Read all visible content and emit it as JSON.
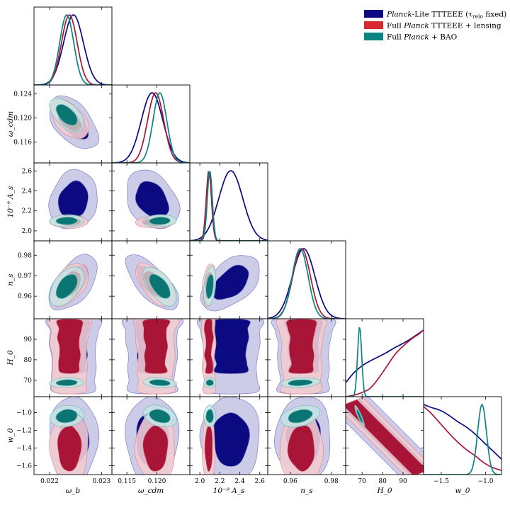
{
  "chart_data": {
    "type": "triangle",
    "parameters": [
      {
        "key": "omega_b",
        "label": "ω_b",
        "range": [
          0.0217,
          0.0232
        ],
        "ticks": [
          0.022,
          0.023
        ],
        "tick_labels": [
          "0.022",
          "0.023"
        ]
      },
      {
        "key": "omega_cdm",
        "label": "ω_cdm",
        "range": [
          0.1125,
          0.1255
        ],
        "ticks": [
          0.115,
          0.12
        ],
        "tick_labels": [
          "0.115",
          "0.120"
        ],
        "y_ticks": [
          0.116,
          0.12,
          0.124
        ],
        "y_tick_labels": [
          "0.116",
          "0.120",
          "0.124"
        ]
      },
      {
        "key": "As",
        "label": "10⁻⁹ A_s",
        "range": [
          1.9,
          2.68
        ],
        "ticks": [
          2.0,
          2.2,
          2.4,
          2.6
        ],
        "tick_labels": [
          "2.0",
          "2.2",
          "2.4",
          "2.6"
        ]
      },
      {
        "key": "ns",
        "label": "n_s",
        "range": [
          0.949,
          0.987
        ],
        "ticks": [
          0.96,
          0.98
        ],
        "tick_labels": [
          "0.96",
          "0.98"
        ],
        "y_ticks": [
          0.96,
          0.97,
          0.98
        ],
        "y_tick_labels": [
          "0.96",
          "0.97",
          "0.98"
        ]
      },
      {
        "key": "H0",
        "label": "H_0",
        "range": [
          62,
          100
        ],
        "ticks": [
          70,
          80,
          90
        ],
        "tick_labels": [
          "70",
          "80",
          "90"
        ]
      },
      {
        "key": "w0",
        "label": "w_0",
        "range": [
          -1.7,
          -0.82
        ],
        "ticks": [
          -1.5,
          -1.0
        ],
        "tick_labels": [
          "−1.5",
          "−1.0"
        ],
        "y_ticks": [
          -1.6,
          -1.4,
          -1.2,
          -1.0
        ],
        "y_tick_labels": [
          "−1.6",
          "−1.4",
          "−1.2",
          "−1.0"
        ]
      }
    ],
    "legend": [
      {
        "name": "Planck-Lite TTTEEE (τ_reio fixed)",
        "prefix": "Planck",
        "rest": "-Lite TTTEEE (τ",
        "sub": "reio",
        "suffix": " fixed)",
        "color": "#0b0a80",
        "light": "#c6c6e6"
      },
      {
        "name": "Full Planck TTTEEE + lensing",
        "prefix": "Full ",
        "italic": "Planck",
        "rest": " TTTEEE + lensing",
        "color": "#d62a2e",
        "light": "#f2ccd2"
      },
      {
        "name": "Full Planck + BAO",
        "prefix": "Full ",
        "italic": "Planck",
        "rest": " + BAO",
        "color": "#0a8582",
        "light": "#c4e6e3"
      }
    ],
    "series": [
      {
        "name": "Planck-Lite TTTEEE (τ_reio fixed)",
        "dark": "#0b0a80",
        "inner": "#0b0a80",
        "outer": "#c6c6e6",
        "outline": "#7f7fc8",
        "mean": {
          "omega_b": 0.02246,
          "omega_cdm": 0.1192,
          "As": 2.31,
          "ns": 0.9665,
          "w0": -1.3
        },
        "sigma": {
          "omega_b": 0.00019,
          "omega_cdm": 0.0018,
          "As": 0.12,
          "ns": 0.0055,
          "w0": 0.2
        },
        "corr": {
          "omega_b|omega_cdm": -0.5,
          "omega_b|As": 0.15,
          "omega_b|ns": 0.55,
          "omega_cdm|As": -0.3,
          "omega_cdm|ns": -0.7,
          "As|ns": 0.5
        },
        "H0_curve": [
          [
            62,
            0.2
          ],
          [
            66,
            0.34
          ],
          [
            70,
            0.44
          ],
          [
            74,
            0.51
          ],
          [
            78,
            0.57
          ],
          [
            82,
            0.63
          ],
          [
            86,
            0.7
          ],
          [
            90,
            0.76
          ],
          [
            94,
            0.83
          ],
          [
            98,
            0.91
          ],
          [
            100,
            0.95
          ]
        ],
        "w0_curve": [
          [
            -1.7,
            1.0
          ],
          [
            -1.62,
            0.96
          ],
          [
            -1.52,
            0.92
          ],
          [
            -1.42,
            0.85
          ],
          [
            -1.32,
            0.76
          ],
          [
            -1.22,
            0.68
          ],
          [
            -1.12,
            0.58
          ],
          [
            -1.02,
            0.46
          ],
          [
            -0.92,
            0.34
          ],
          [
            -0.82,
            0.22
          ]
        ]
      },
      {
        "name": "Full Planck TTTEEE + lensing",
        "dark": "#a81537",
        "inner": "#a81537",
        "outer": "#f2ccd2",
        "outline": "#dc8e98",
        "mean": {
          "omega_b": 0.02238,
          "omega_cdm": 0.1198,
          "As": 2.09,
          "ns": 0.9655,
          "w0": -1.4
        },
        "sigma": {
          "omega_b": 0.00015,
          "omega_cdm": 0.00135,
          "As": 0.026,
          "ns": 0.0043,
          "w0": 0.17
        },
        "corr": {
          "omega_b|omega_cdm": -0.5,
          "omega_b|As": 0.0,
          "omega_b|ns": 0.5,
          "omega_cdm|As": 0.1,
          "omega_cdm|ns": -0.6,
          "As|ns": 0.3
        },
        "H0_curve": [
          [
            62,
            0.0
          ],
          [
            66,
            0.02
          ],
          [
            70,
            0.06
          ],
          [
            74,
            0.12
          ],
          [
            78,
            0.26
          ],
          [
            82,
            0.43
          ],
          [
            86,
            0.6
          ],
          [
            90,
            0.72
          ],
          [
            94,
            0.82
          ],
          [
            98,
            0.9
          ],
          [
            100,
            0.95
          ]
        ],
        "w0_curve": [
          [
            -1.7,
            0.97
          ],
          [
            -1.62,
            0.88
          ],
          [
            -1.52,
            0.74
          ],
          [
            -1.42,
            0.6
          ],
          [
            -1.32,
            0.47
          ],
          [
            -1.22,
            0.36
          ],
          [
            -1.12,
            0.27
          ],
          [
            -1.02,
            0.17
          ],
          [
            -0.92,
            0.1
          ],
          [
            -0.82,
            0.06
          ]
        ]
      },
      {
        "name": "Full Planck + BAO",
        "dark": "#0a8582",
        "inner": "#0a7572",
        "outer": "#c4e6e3",
        "outline": "#6cc0bd",
        "mean": {
          "omega_b": 0.02233,
          "omega_cdm": 0.1205,
          "As": 2.1,
          "ns": 0.9648,
          "H0": 68.8,
          "w0": -1.04
        },
        "sigma": {
          "omega_b": 0.000135,
          "omega_cdm": 0.00115,
          "As": 0.025,
          "ns": 0.0039,
          "H0": 1.0,
          "w0": 0.05
        },
        "corr": {
          "omega_b|omega_cdm": -0.55,
          "omega_b|As": 0.05,
          "omega_b|ns": 0.5,
          "omega_cdm|As": 0.1,
          "omega_cdm|ns": -0.6,
          "As|ns": 0.3,
          "omega_b|H0": 0.1,
          "omega_cdm|H0": -0.2,
          "As|H0": 0.0,
          "ns|H0": 0.2,
          "omega_b|w0": 0.15,
          "omega_cdm|w0": -0.3,
          "As|w0": 0.0,
          "ns|w0": 0.35,
          "H0|w0": -0.9
        }
      }
    ]
  }
}
